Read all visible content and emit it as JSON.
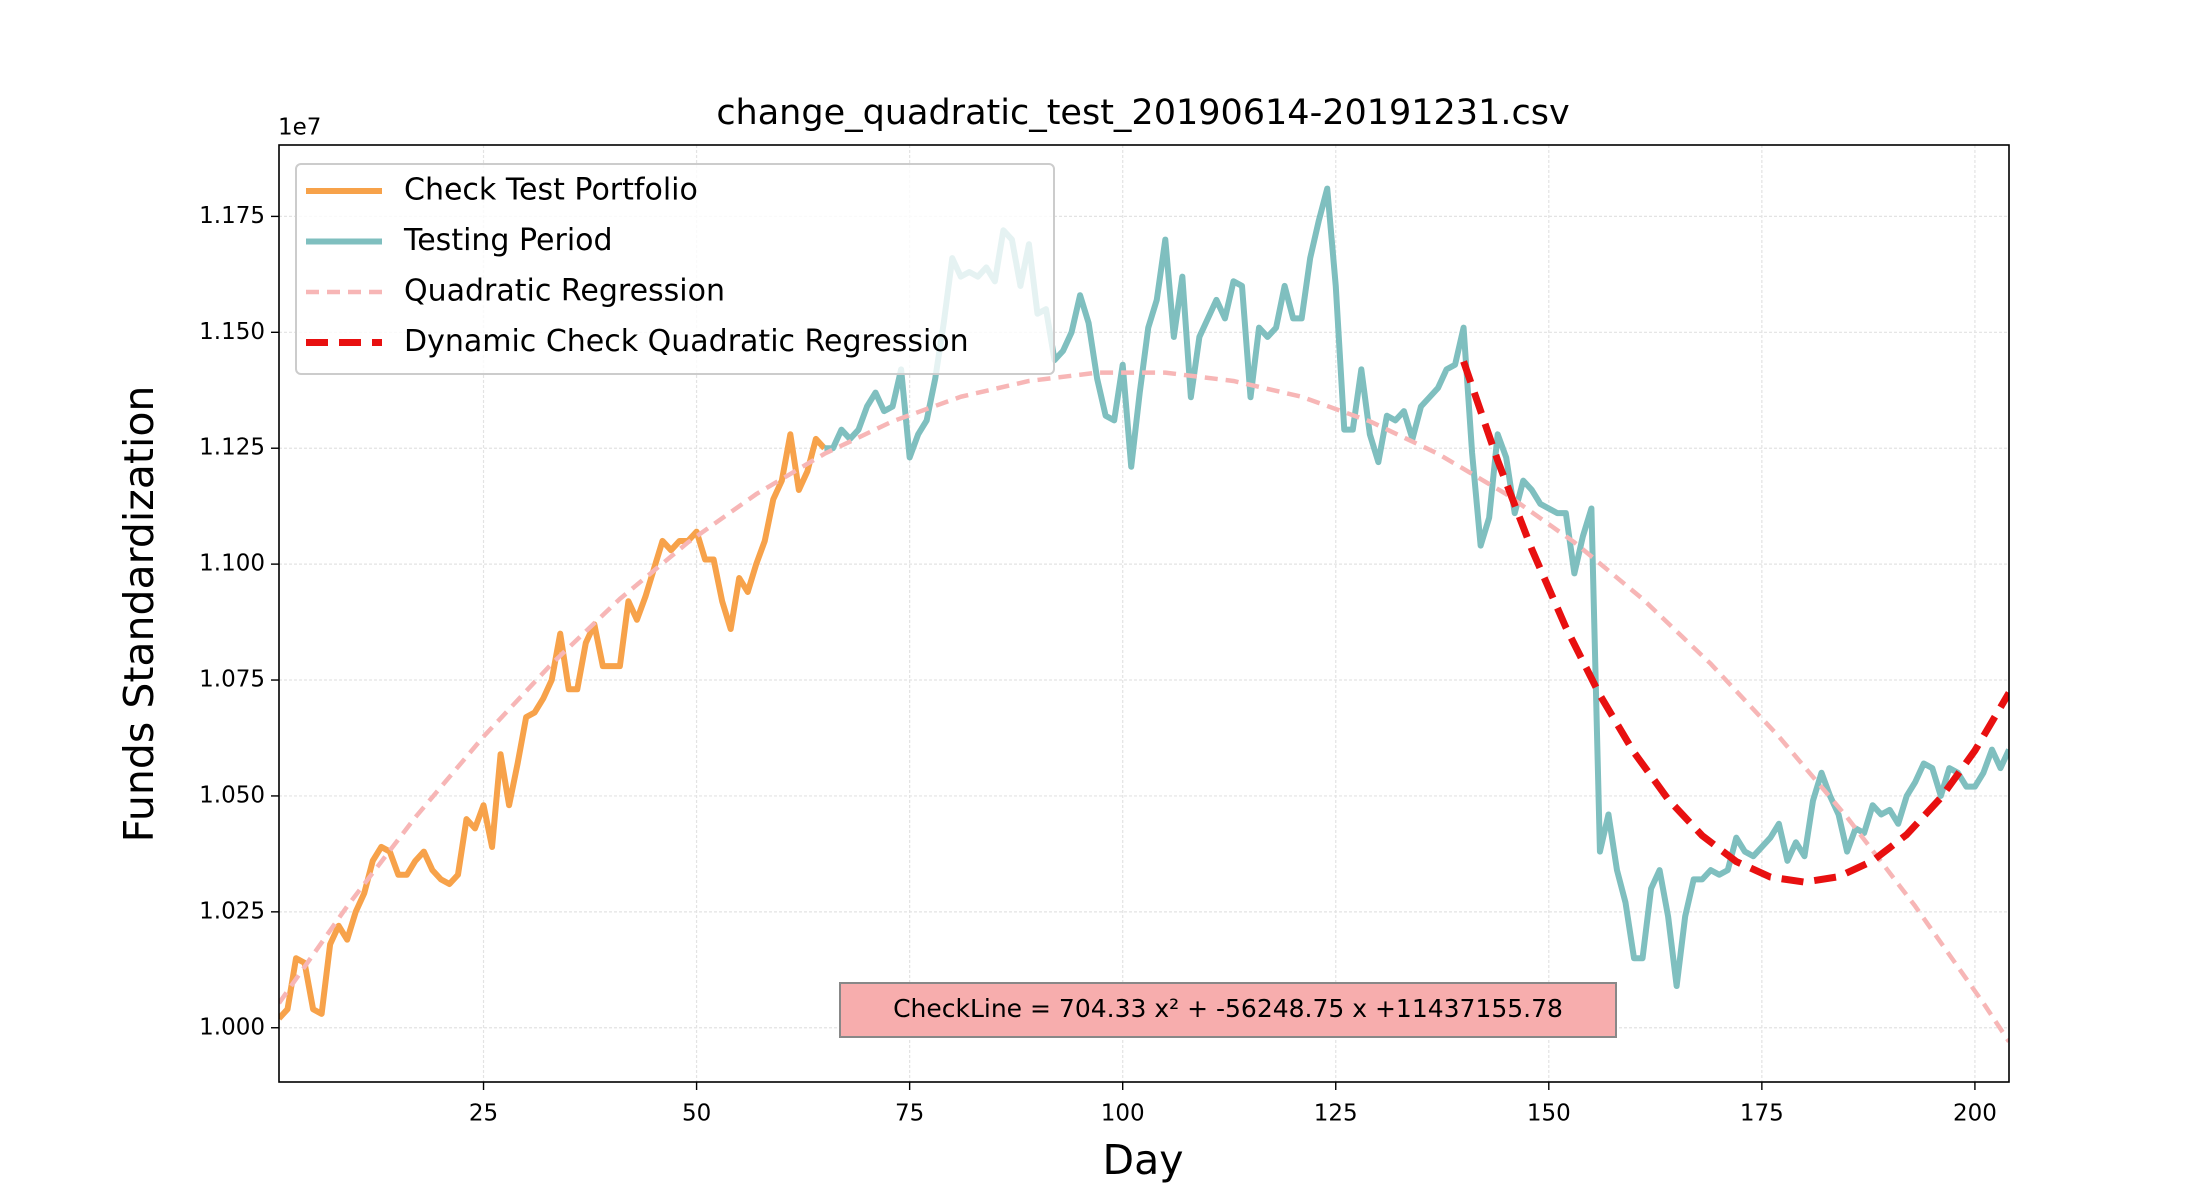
{
  "chart_data": {
    "type": "line",
    "title": "change_quadratic_test_20190614-20191231.csv",
    "xlabel": "Day",
    "ylabel": "Funds Standardization",
    "y_offset_label": "1e7",
    "annotation": "CheckLine = 704.33 x² + -56248.75 x +11437155.78",
    "xlim": [
      1,
      204
    ],
    "ylim": [
      9883000,
      11904000
    ],
    "xticks": [
      25,
      50,
      75,
      100,
      125,
      150,
      175,
      200
    ],
    "yticks": [
      {
        "value": 10000000,
        "label": "1.000"
      },
      {
        "value": 10250000,
        "label": "1.025"
      },
      {
        "value": 10500000,
        "label": "1.050"
      },
      {
        "value": 10750000,
        "label": "1.075"
      },
      {
        "value": 11000000,
        "label": "1.100"
      },
      {
        "value": 11250000,
        "label": "1.125"
      },
      {
        "value": 11500000,
        "label": "1.150"
      },
      {
        "value": 11750000,
        "label": "1.175"
      }
    ],
    "grid": true,
    "legend": "upper left",
    "series": [
      {
        "name": "Check Test Portfolio",
        "color": "#f7a24a",
        "style": "solid",
        "x": [
          1,
          2,
          3,
          4,
          5,
          6,
          7,
          8,
          9,
          10,
          11,
          12,
          13,
          14,
          15,
          16,
          17,
          18,
          19,
          20,
          21,
          22,
          23,
          24,
          25,
          26,
          27,
          28,
          29,
          30,
          31,
          32,
          33,
          34,
          35,
          36,
          37,
          38,
          39,
          40,
          41,
          42,
          43,
          44,
          45,
          46,
          47,
          48,
          49,
          50,
          51,
          52,
          53,
          54,
          55,
          56,
          57,
          58,
          59,
          60,
          61,
          62,
          63,
          64,
          65
        ],
        "values": [
          10020000,
          10040000,
          10150000,
          10140000,
          10040000,
          10030000,
          10180000,
          10220000,
          10190000,
          10250000,
          10290000,
          10360000,
          10390000,
          10380000,
          10330000,
          10330000,
          10360000,
          10380000,
          10340000,
          10320000,
          10310000,
          10330000,
          10450000,
          10430000,
          10480000,
          10390000,
          10590000,
          10480000,
          10570000,
          10670000,
          10680000,
          10710000,
          10750000,
          10850000,
          10730000,
          10730000,
          10830000,
          10870000,
          10780000,
          10780000,
          10780000,
          10920000,
          10880000,
          10930000,
          10990000,
          11050000,
          11030000,
          11050000,
          11050000,
          11070000,
          11010000,
          11010000,
          10920000,
          10860000,
          10970000,
          10940000,
          11000000,
          11050000,
          11140000,
          11180000,
          11280000,
          11160000,
          11200000,
          11270000,
          11250000
        ]
      },
      {
        "name": "Testing Period",
        "color": "#7fbfbf",
        "style": "solid",
        "x": [
          65,
          66,
          67,
          68,
          69,
          70,
          71,
          72,
          73,
          74,
          75,
          76,
          77,
          78,
          79,
          80,
          81,
          82,
          83,
          84,
          85,
          86,
          87,
          88,
          89,
          90,
          91,
          92,
          93,
          94,
          95,
          96,
          97,
          98,
          99,
          100,
          101,
          102,
          103,
          104,
          105,
          106,
          107,
          108,
          109,
          110,
          111,
          112,
          113,
          114,
          115,
          116,
          117,
          118,
          119,
          120,
          121,
          122,
          123,
          124,
          125,
          126,
          127,
          128,
          129,
          130,
          131,
          132,
          133,
          134,
          135,
          136,
          137,
          138,
          139,
          140,
          141,
          142,
          143,
          144,
          145,
          146,
          147,
          148,
          149,
          150,
          151,
          152,
          153,
          154,
          155,
          156,
          157,
          158,
          159,
          160,
          161,
          162,
          163,
          164,
          165,
          166,
          167,
          168,
          169,
          170,
          171,
          172,
          173,
          174,
          175,
          176,
          177,
          178,
          179,
          180,
          181,
          182,
          183,
          184,
          185,
          186,
          187,
          188,
          189,
          190,
          191,
          192,
          193,
          194,
          195,
          196,
          197,
          198,
          199,
          200,
          201,
          202,
          203,
          204
        ],
        "values": [
          11250000,
          11250000,
          11290000,
          11270000,
          11290000,
          11340000,
          11370000,
          11330000,
          11340000,
          11420000,
          11230000,
          11280000,
          11310000,
          11400000,
          11520000,
          11660000,
          11620000,
          11630000,
          11620000,
          11640000,
          11610000,
          11720000,
          11700000,
          11600000,
          11690000,
          11540000,
          11550000,
          11440000,
          11460000,
          11500000,
          11580000,
          11520000,
          11400000,
          11320000,
          11310000,
          11430000,
          11210000,
          11370000,
          11510000,
          11570000,
          11700000,
          11490000,
          11620000,
          11360000,
          11490000,
          11530000,
          11570000,
          11530000,
          11610000,
          11600000,
          11360000,
          11510000,
          11490000,
          11510000,
          11600000,
          11530000,
          11530000,
          11660000,
          11740000,
          11810000,
          11600000,
          11290000,
          11290000,
          11420000,
          11280000,
          11220000,
          11320000,
          11310000,
          11330000,
          11270000,
          11340000,
          11360000,
          11380000,
          11420000,
          11430000,
          11510000,
          11240000,
          11040000,
          11100000,
          11280000,
          11230000,
          11110000,
          11180000,
          11160000,
          11130000,
          11120000,
          11110000,
          11110000,
          10980000,
          11060000,
          11120000,
          10380000,
          10460000,
          10340000,
          10270000,
          10150000,
          10150000,
          10300000,
          10340000,
          10240000,
          10090000,
          10240000,
          10320000,
          10320000,
          10340000,
          10330000,
          10340000,
          10410000,
          10380000,
          10370000,
          10390000,
          10410000,
          10440000,
          10360000,
          10400000,
          10370000,
          10490000,
          10550000,
          10500000,
          10460000,
          10380000,
          10430000,
          10420000,
          10480000,
          10460000,
          10470000,
          10440000,
          10500000,
          10530000,
          10570000,
          10560000,
          10500000,
          10560000,
          10550000,
          10520000,
          10520000,
          10550000,
          10600000,
          10560000,
          10600000
        ]
      },
      {
        "name": "Quadratic Regression",
        "color": "#f7b6b6",
        "style": "dashed",
        "x": [
          1,
          9,
          17,
          25,
          33,
          41,
          49,
          57,
          65,
          73,
          81,
          89,
          97,
          105,
          113,
          121,
          129,
          137,
          145,
          153,
          161,
          169,
          177,
          185,
          193,
          201,
          204
        ],
        "values": [
          10053000,
          10262000,
          10454000,
          10628000,
          10785000,
          10925000,
          11047000,
          11151000,
          11238000,
          11308000,
          11361000,
          11395000,
          11413000,
          11413000,
          11395000,
          11361000,
          11308000,
          11238000,
          11151000,
          11047000,
          10925000,
          10785000,
          10628000,
          10454000,
          10262000,
          10053000,
          9970000
        ]
      },
      {
        "name": "Dynamic Check Quadratic Regression",
        "color": "#e81010",
        "style": "dashed",
        "x": [
          140,
          144,
          148,
          152,
          156,
          160,
          164,
          168,
          172,
          176,
          180,
          184,
          188,
          192,
          196,
          200,
          204
        ],
        "values": [
          11437156,
          11223430,
          11032243,
          10863595,
          10717484,
          10593913,
          10492880,
          10414386,
          10358430,
          10325013,
          10314134,
          10325794,
          10359992,
          10416729,
          10496005,
          10597819,
          10722172
        ]
      }
    ]
  }
}
